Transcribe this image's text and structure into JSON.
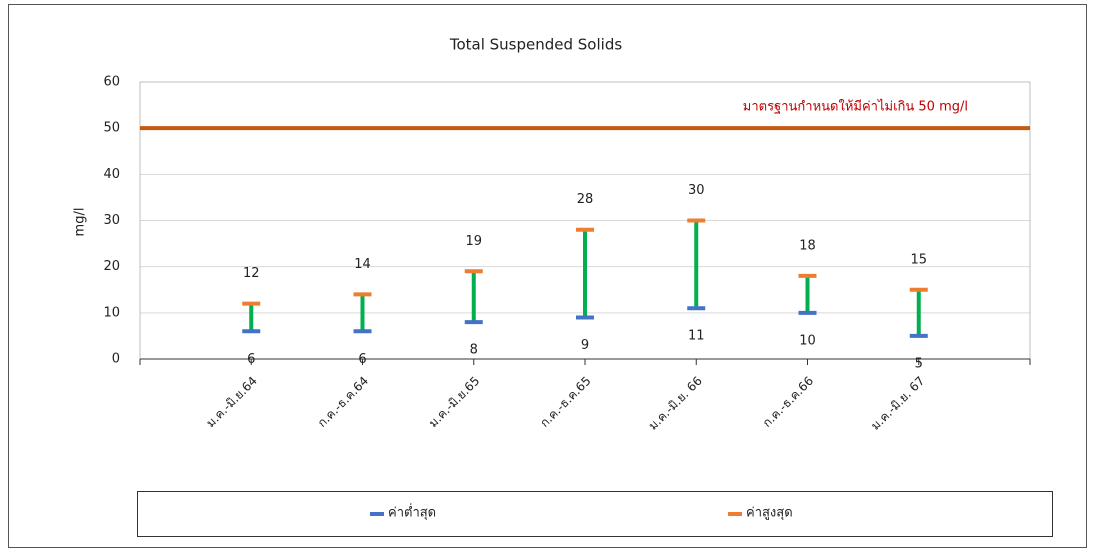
{
  "chart_data": {
    "type": "range",
    "title": "Total Suspended Solids",
    "y_label": "mg/l",
    "categories": [
      "ม.ค.-มิ.ย.64",
      "ก.ค.-ธ.ค.64",
      "ม.ค.-มิ.ย.65",
      "ก.ค.-ธ.ค.65",
      "ม.ค.-มิ.ย. 66",
      "ก.ค.-ธ.ค.66",
      "ม.ค.-มิ.ย. 67"
    ],
    "series": [
      {
        "name": "ค่าต่ำสุด",
        "color": "#4472c4",
        "values": [
          6,
          6,
          8,
          9,
          11,
          10,
          5
        ]
      },
      {
        "name": "ค่าสูงสุด",
        "color": "#ed7d31",
        "values": [
          12,
          14,
          19,
          28,
          30,
          18,
          15
        ]
      }
    ],
    "connector_color": "#00b050",
    "threshold": {
      "value": 50,
      "label": "มาตรฐานกำหนดให้มีค่าไม่เกิน 50 mg/l",
      "color": "#c55a11",
      "label_color": "#c00000"
    },
    "ylim": [
      0,
      60
    ],
    "yticks": [
      0,
      10,
      20,
      30,
      40,
      50,
      60
    ],
    "grid": true
  }
}
